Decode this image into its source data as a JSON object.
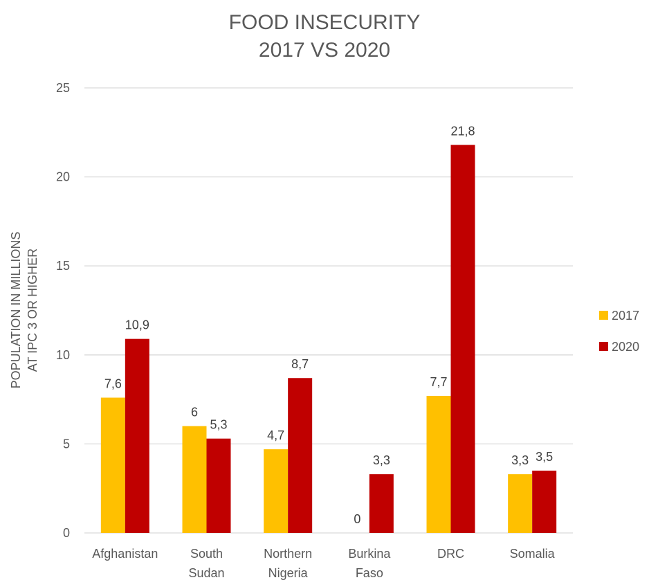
{
  "chart_data": {
    "type": "bar",
    "title": [
      "FOOD INSECURITY",
      "2017 VS 2020"
    ],
    "ylabel": [
      "POPULATION IN MILLIONS",
      "AT IPC 3 OR HIGHER"
    ],
    "xlabel": "",
    "categories": [
      [
        "Afghanistan"
      ],
      [
        "South",
        "Sudan"
      ],
      [
        "Northern",
        "Nigeria"
      ],
      [
        "Burkina",
        "Faso"
      ],
      [
        "DRC"
      ],
      [
        "Somalia"
      ]
    ],
    "series": [
      {
        "name": "2017",
        "color": "#FFC000",
        "values": [
          7.6,
          6,
          4.7,
          0,
          7.7,
          3.3
        ],
        "labels": [
          "7,6",
          "6",
          "4,7",
          "0",
          "7,7",
          "3,3"
        ]
      },
      {
        "name": "2020",
        "color": "#C00000",
        "values": [
          10.9,
          5.3,
          8.7,
          3.3,
          21.8,
          3.5
        ],
        "labels": [
          "10,9",
          "5,3",
          "8,7",
          "3,3",
          "21,8",
          "3,5"
        ]
      }
    ],
    "ylim": [
      0,
      25
    ],
    "yticks": [
      0,
      5,
      10,
      15,
      20,
      25
    ],
    "grid": true,
    "legend_position": "right"
  }
}
